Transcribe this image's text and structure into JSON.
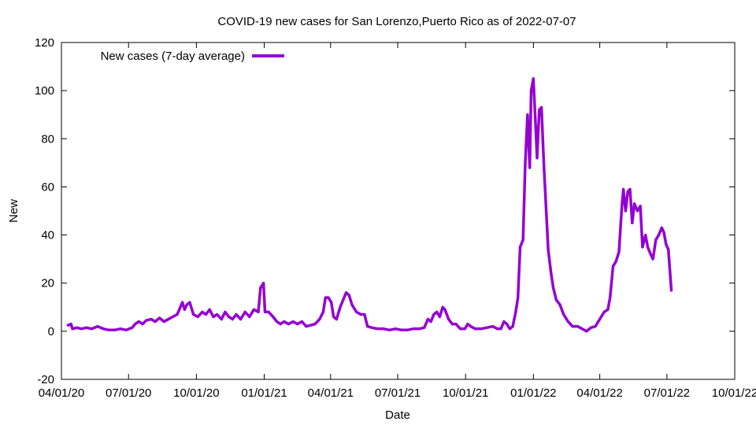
{
  "chart_data": {
    "type": "line",
    "title": "COVID-19 new cases for San Lorenzo,Puerto Rico as of 2022-07-07",
    "xlabel": "Date",
    "ylabel": "New",
    "ylim": [
      -20,
      120
    ],
    "yticks": [
      -20,
      0,
      20,
      40,
      60,
      80,
      100,
      120
    ],
    "xlim": [
      "2020-04-01",
      "2022-10-01"
    ],
    "xticks": [
      {
        "date": "2020-04-01",
        "label": "04/01/20"
      },
      {
        "date": "2020-07-01",
        "label": "07/01/20"
      },
      {
        "date": "2020-10-01",
        "label": "10/01/20"
      },
      {
        "date": "2021-01-01",
        "label": "01/01/21"
      },
      {
        "date": "2021-04-01",
        "label": "04/01/21"
      },
      {
        "date": "2021-07-01",
        "label": "07/01/21"
      },
      {
        "date": "2021-10-01",
        "label": "10/01/21"
      },
      {
        "date": "2022-01-01",
        "label": "01/01/22"
      },
      {
        "date": "2022-04-01",
        "label": "04/01/22"
      },
      {
        "date": "2022-07-01",
        "label": "07/01/22"
      },
      {
        "date": "2022-10-01",
        "label": "10/01/22"
      }
    ],
    "grid": false,
    "legend_position": "top-left",
    "series": [
      {
        "name": "New cases (7-day average)",
        "color": "#9400d3",
        "points": [
          [
            "2020-04-10",
            2.5
          ],
          [
            "2020-04-14",
            3
          ],
          [
            "2020-04-16",
            1
          ],
          [
            "2020-04-22",
            1.5
          ],
          [
            "2020-04-28",
            1
          ],
          [
            "2020-05-05",
            1.5
          ],
          [
            "2020-05-12",
            1
          ],
          [
            "2020-05-20",
            2
          ],
          [
            "2020-05-28",
            1
          ],
          [
            "2020-06-04",
            0.5
          ],
          [
            "2020-06-12",
            0.5
          ],
          [
            "2020-06-20",
            1
          ],
          [
            "2020-06-28",
            0.5
          ],
          [
            "2020-07-06",
            1.5
          ],
          [
            "2020-07-10",
            3
          ],
          [
            "2020-07-15",
            4
          ],
          [
            "2020-07-20",
            3
          ],
          [
            "2020-07-25",
            4.5
          ],
          [
            "2020-08-01",
            5
          ],
          [
            "2020-08-06",
            4
          ],
          [
            "2020-08-12",
            5.5
          ],
          [
            "2020-08-18",
            4
          ],
          [
            "2020-08-24",
            5
          ],
          [
            "2020-08-30",
            6
          ],
          [
            "2020-09-05",
            7
          ],
          [
            "2020-09-12",
            12
          ],
          [
            "2020-09-15",
            9
          ],
          [
            "2020-09-18",
            11
          ],
          [
            "2020-09-22",
            12
          ],
          [
            "2020-09-27",
            7
          ],
          [
            "2020-10-03",
            6
          ],
          [
            "2020-10-09",
            8
          ],
          [
            "2020-10-14",
            7
          ],
          [
            "2020-10-19",
            9
          ],
          [
            "2020-10-24",
            6
          ],
          [
            "2020-10-29",
            7
          ],
          [
            "2020-11-04",
            5
          ],
          [
            "2020-11-09",
            8
          ],
          [
            "2020-11-14",
            6
          ],
          [
            "2020-11-19",
            5
          ],
          [
            "2020-11-24",
            7
          ],
          [
            "2020-11-30",
            5
          ],
          [
            "2020-12-06",
            8
          ],
          [
            "2020-12-12",
            6
          ],
          [
            "2020-12-18",
            9
          ],
          [
            "2020-12-24",
            8
          ],
          [
            "2020-12-27",
            18
          ],
          [
            "2020-12-31",
            20
          ],
          [
            "2021-01-02",
            8
          ],
          [
            "2021-01-07",
            8
          ],
          [
            "2021-01-13",
            6
          ],
          [
            "2021-01-18",
            4
          ],
          [
            "2021-01-23",
            3
          ],
          [
            "2021-01-28",
            4
          ],
          [
            "2021-02-03",
            3
          ],
          [
            "2021-02-09",
            4
          ],
          [
            "2021-02-15",
            3
          ],
          [
            "2021-02-21",
            4
          ],
          [
            "2021-02-27",
            2
          ],
          [
            "2021-03-05",
            2.5
          ],
          [
            "2021-03-11",
            3
          ],
          [
            "2021-03-17",
            5
          ],
          [
            "2021-03-22",
            8
          ],
          [
            "2021-03-25",
            14
          ],
          [
            "2021-03-29",
            14
          ],
          [
            "2021-04-02",
            12
          ],
          [
            "2021-04-05",
            6
          ],
          [
            "2021-04-09",
            5
          ],
          [
            "2021-04-14",
            10
          ],
          [
            "2021-04-18",
            13
          ],
          [
            "2021-04-22",
            16
          ],
          [
            "2021-04-26",
            15
          ],
          [
            "2021-04-30",
            11
          ],
          [
            "2021-05-06",
            8
          ],
          [
            "2021-05-12",
            7
          ],
          [
            "2021-05-17",
            7
          ],
          [
            "2021-05-21",
            2
          ],
          [
            "2021-05-27",
            1.5
          ],
          [
            "2021-06-04",
            1
          ],
          [
            "2021-06-12",
            1
          ],
          [
            "2021-06-20",
            0.5
          ],
          [
            "2021-06-28",
            1
          ],
          [
            "2021-07-06",
            0.5
          ],
          [
            "2021-07-14",
            0.5
          ],
          [
            "2021-07-22",
            1
          ],
          [
            "2021-07-30",
            1
          ],
          [
            "2021-08-06",
            1.5
          ],
          [
            "2021-08-11",
            5
          ],
          [
            "2021-08-15",
            4
          ],
          [
            "2021-08-19",
            7
          ],
          [
            "2021-08-23",
            8
          ],
          [
            "2021-08-27",
            6
          ],
          [
            "2021-08-31",
            10
          ],
          [
            "2021-09-03",
            9
          ],
          [
            "2021-09-08",
            5
          ],
          [
            "2021-09-13",
            3
          ],
          [
            "2021-09-18",
            3
          ],
          [
            "2021-09-24",
            1
          ],
          [
            "2021-09-30",
            1
          ],
          [
            "2021-10-04",
            3
          ],
          [
            "2021-10-08",
            2
          ],
          [
            "2021-10-14",
            1
          ],
          [
            "2021-10-22",
            1
          ],
          [
            "2021-10-30",
            1.5
          ],
          [
            "2021-11-07",
            2
          ],
          [
            "2021-11-13",
            1
          ],
          [
            "2021-11-18",
            1
          ],
          [
            "2021-11-22",
            4
          ],
          [
            "2021-11-26",
            3
          ],
          [
            "2021-11-30",
            1
          ],
          [
            "2021-12-04",
            2
          ],
          [
            "2021-12-08",
            8
          ],
          [
            "2021-12-11",
            14
          ],
          [
            "2021-12-14",
            35
          ],
          [
            "2021-12-18",
            38
          ],
          [
            "2021-12-21",
            70
          ],
          [
            "2021-12-24",
            90
          ],
          [
            "2021-12-27",
            68
          ],
          [
            "2021-12-29",
            100
          ],
          [
            "2022-01-01",
            105
          ],
          [
            "2022-01-04",
            85
          ],
          [
            "2022-01-06",
            72
          ],
          [
            "2022-01-09",
            92
          ],
          [
            "2022-01-12",
            93
          ],
          [
            "2022-01-15",
            70
          ],
          [
            "2022-01-18",
            52
          ],
          [
            "2022-01-21",
            34
          ],
          [
            "2022-01-25",
            24
          ],
          [
            "2022-01-28",
            18
          ],
          [
            "2022-02-01",
            13
          ],
          [
            "2022-02-06",
            11
          ],
          [
            "2022-02-11",
            7
          ],
          [
            "2022-02-17",
            4
          ],
          [
            "2022-02-23",
            2
          ],
          [
            "2022-03-02",
            2
          ],
          [
            "2022-03-08",
            1
          ],
          [
            "2022-03-14",
            0
          ],
          [
            "2022-03-20",
            1.5
          ],
          [
            "2022-03-26",
            2
          ],
          [
            "2022-04-01",
            5
          ],
          [
            "2022-04-07",
            8
          ],
          [
            "2022-04-12",
            9
          ],
          [
            "2022-04-15",
            14
          ],
          [
            "2022-04-19",
            27
          ],
          [
            "2022-04-23",
            29
          ],
          [
            "2022-04-27",
            33
          ],
          [
            "2022-05-01",
            52
          ],
          [
            "2022-05-03",
            59
          ],
          [
            "2022-05-06",
            50
          ],
          [
            "2022-05-09",
            58
          ],
          [
            "2022-05-12",
            59
          ],
          [
            "2022-05-15",
            45
          ],
          [
            "2022-05-18",
            53
          ],
          [
            "2022-05-22",
            50
          ],
          [
            "2022-05-26",
            52
          ],
          [
            "2022-05-29",
            35
          ],
          [
            "2022-06-02",
            40
          ],
          [
            "2022-06-05",
            35
          ],
          [
            "2022-06-09",
            32
          ],
          [
            "2022-06-12",
            30
          ],
          [
            "2022-06-16",
            38
          ],
          [
            "2022-06-20",
            40
          ],
          [
            "2022-06-24",
            43
          ],
          [
            "2022-06-27",
            41
          ],
          [
            "2022-06-30",
            36
          ],
          [
            "2022-07-03",
            34
          ],
          [
            "2022-07-07",
            17
          ]
        ]
      }
    ]
  }
}
